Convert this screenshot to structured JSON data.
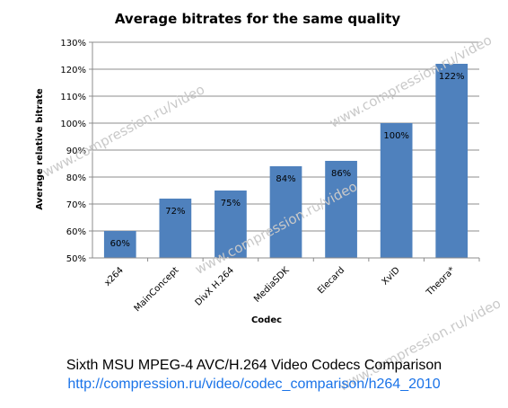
{
  "chart_data": {
    "type": "bar",
    "title": "Average bitrates for the same quality",
    "xlabel": "Codec",
    "ylabel": "Average relative bitrate",
    "categories": [
      "x264",
      "MainConcept",
      "DivX H.264",
      "MediaSDK",
      "Elecard",
      "XviD",
      "Theora*"
    ],
    "values": [
      60,
      72,
      75,
      84,
      86,
      100,
      122
    ],
    "value_labels": [
      "60%",
      "72%",
      "75%",
      "84%",
      "86%",
      "100%",
      "122%"
    ],
    "ylim": [
      50,
      130
    ],
    "yticks": [
      50,
      60,
      70,
      80,
      90,
      100,
      110,
      120,
      130
    ],
    "ytick_labels": [
      "50%",
      "60%",
      "70%",
      "80%",
      "90%",
      "100%",
      "110%",
      "120%",
      "130%"
    ],
    "grid": true,
    "legend": "none",
    "bar_color": "#4f81bd"
  },
  "watermark": "www.compression.ru/video",
  "caption": {
    "line1": "Sixth MSU MPEG-4 AVC/H.264 Video Codecs Comparison",
    "line2": "http://compression.ru/video/codec_comparison/h264_2010",
    "line2_color": "#1a73e8"
  }
}
